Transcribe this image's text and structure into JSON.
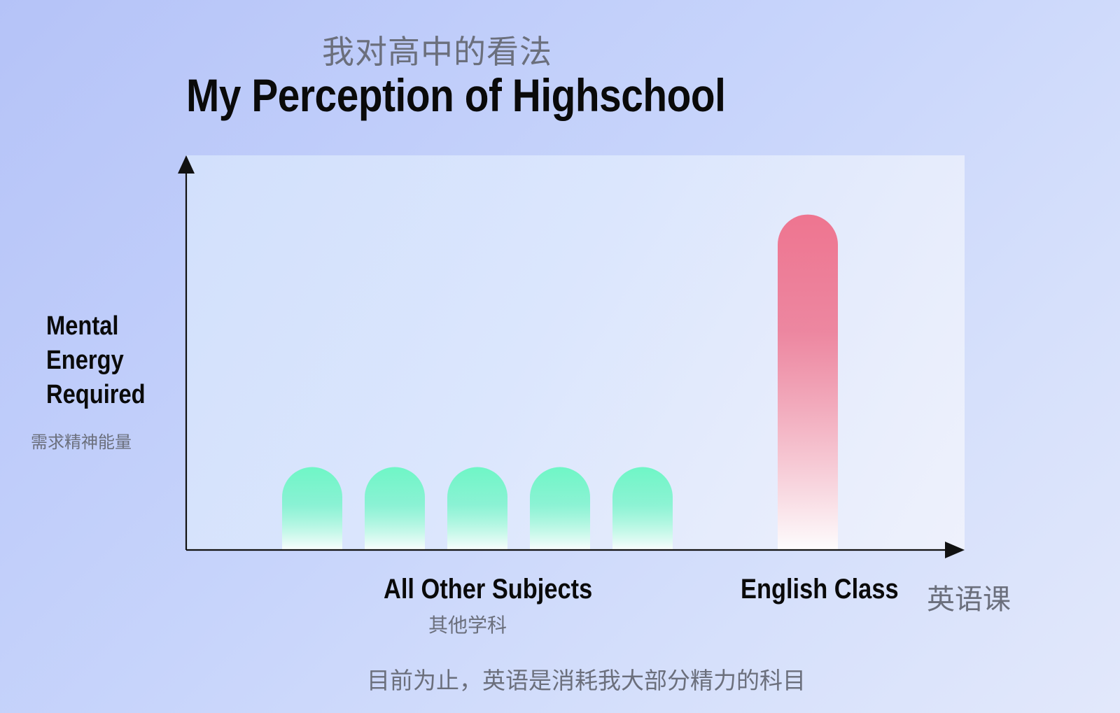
{
  "header": {
    "title_cn": "我对高中的看法",
    "title_en": "My Perception of Highschool"
  },
  "y_axis": {
    "label_en_lines": [
      "Mental",
      "Energy",
      "Required"
    ],
    "label_cn": "需求精神能量"
  },
  "x_axis": {
    "label_cn": "英语课"
  },
  "categories": [
    {
      "label_en": "All Other Subjects",
      "label_cn": "其他学科"
    },
    {
      "label_en": "English Class",
      "label_cn": ""
    }
  ],
  "caption": "目前为止，英语是消耗我大部分精力的科目",
  "colors": {
    "green_bar_top": "#6ff6c6",
    "green_bar_bottom": "#fbfdfd",
    "red_bar_top": "#ee7590",
    "red_bar_bottom": "#fdfcfd",
    "axis": "#111111",
    "label_gray": "#6b6f7c"
  },
  "chart_data": {
    "type": "bar",
    "title": "My Perception of Highschool",
    "subtitle": "我对高中的看法",
    "ylabel": "Mental Energy Required",
    "xlabel": "",
    "categories": [
      "All Other Subjects",
      "All Other Subjects",
      "All Other Subjects",
      "All Other Subjects",
      "All Other Subjects",
      "English Class"
    ],
    "values": [
      21,
      21,
      21,
      21,
      21,
      85
    ],
    "ylim": [
      0,
      100
    ],
    "grid": false,
    "legend": "none"
  }
}
